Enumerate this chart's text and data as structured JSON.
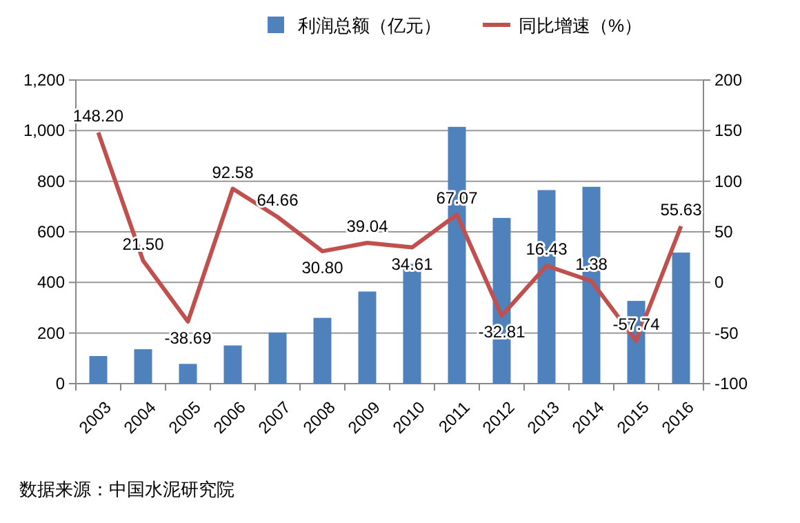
{
  "chart_data": {
    "type": "bar",
    "categories": [
      "2003",
      "2004",
      "2005",
      "2006",
      "2007",
      "2008",
      "2009",
      "2010",
      "2011",
      "2012",
      "2013",
      "2014",
      "2015",
      "2016"
    ],
    "series": [
      {
        "name": "利润总额（亿元）",
        "color": "#4f81bd",
        "values": [
          109,
          136,
          78,
          151,
          202,
          260,
          364,
          473,
          1015,
          655,
          765,
          778,
          327,
          518
        ]
      },
      {
        "name": "同比增速（%）",
        "type": "line",
        "axis": "y2",
        "color": "#c0504d",
        "values": [
          148.2,
          21.5,
          -38.69,
          92.58,
          64.66,
          30.8,
          39.04,
          34.61,
          67.07,
          -32.81,
          16.43,
          1.38,
          -57.74,
          55.63
        ],
        "value_labels": [
          "148.20",
          "21.50",
          "-38.69",
          "92.58",
          "64.66",
          "30.80",
          "39.04",
          "34.61",
          "67.07",
          "-32.81",
          "16.43",
          "1.38",
          "-57.74",
          "55.63"
        ]
      }
    ],
    "ylim": [
      0,
      1200
    ],
    "yticks": [
      {
        "value": 0,
        "label": "0"
      },
      {
        "value": 200,
        "label": "200"
      },
      {
        "value": 400,
        "label": "400"
      },
      {
        "value": 600,
        "label": "600"
      },
      {
        "value": 800,
        "label": "800"
      },
      {
        "value": 1000,
        "label": "1,000"
      },
      {
        "value": 1200,
        "label": "1,200"
      }
    ],
    "y2lim": [
      -100,
      200
    ],
    "y2ticks": [
      -100,
      -50,
      0,
      50,
      100,
      150,
      200
    ],
    "grid": "y",
    "legend": "top",
    "marker": "none",
    "annotations": [
      "数据来源：中国水泥研究院"
    ]
  }
}
